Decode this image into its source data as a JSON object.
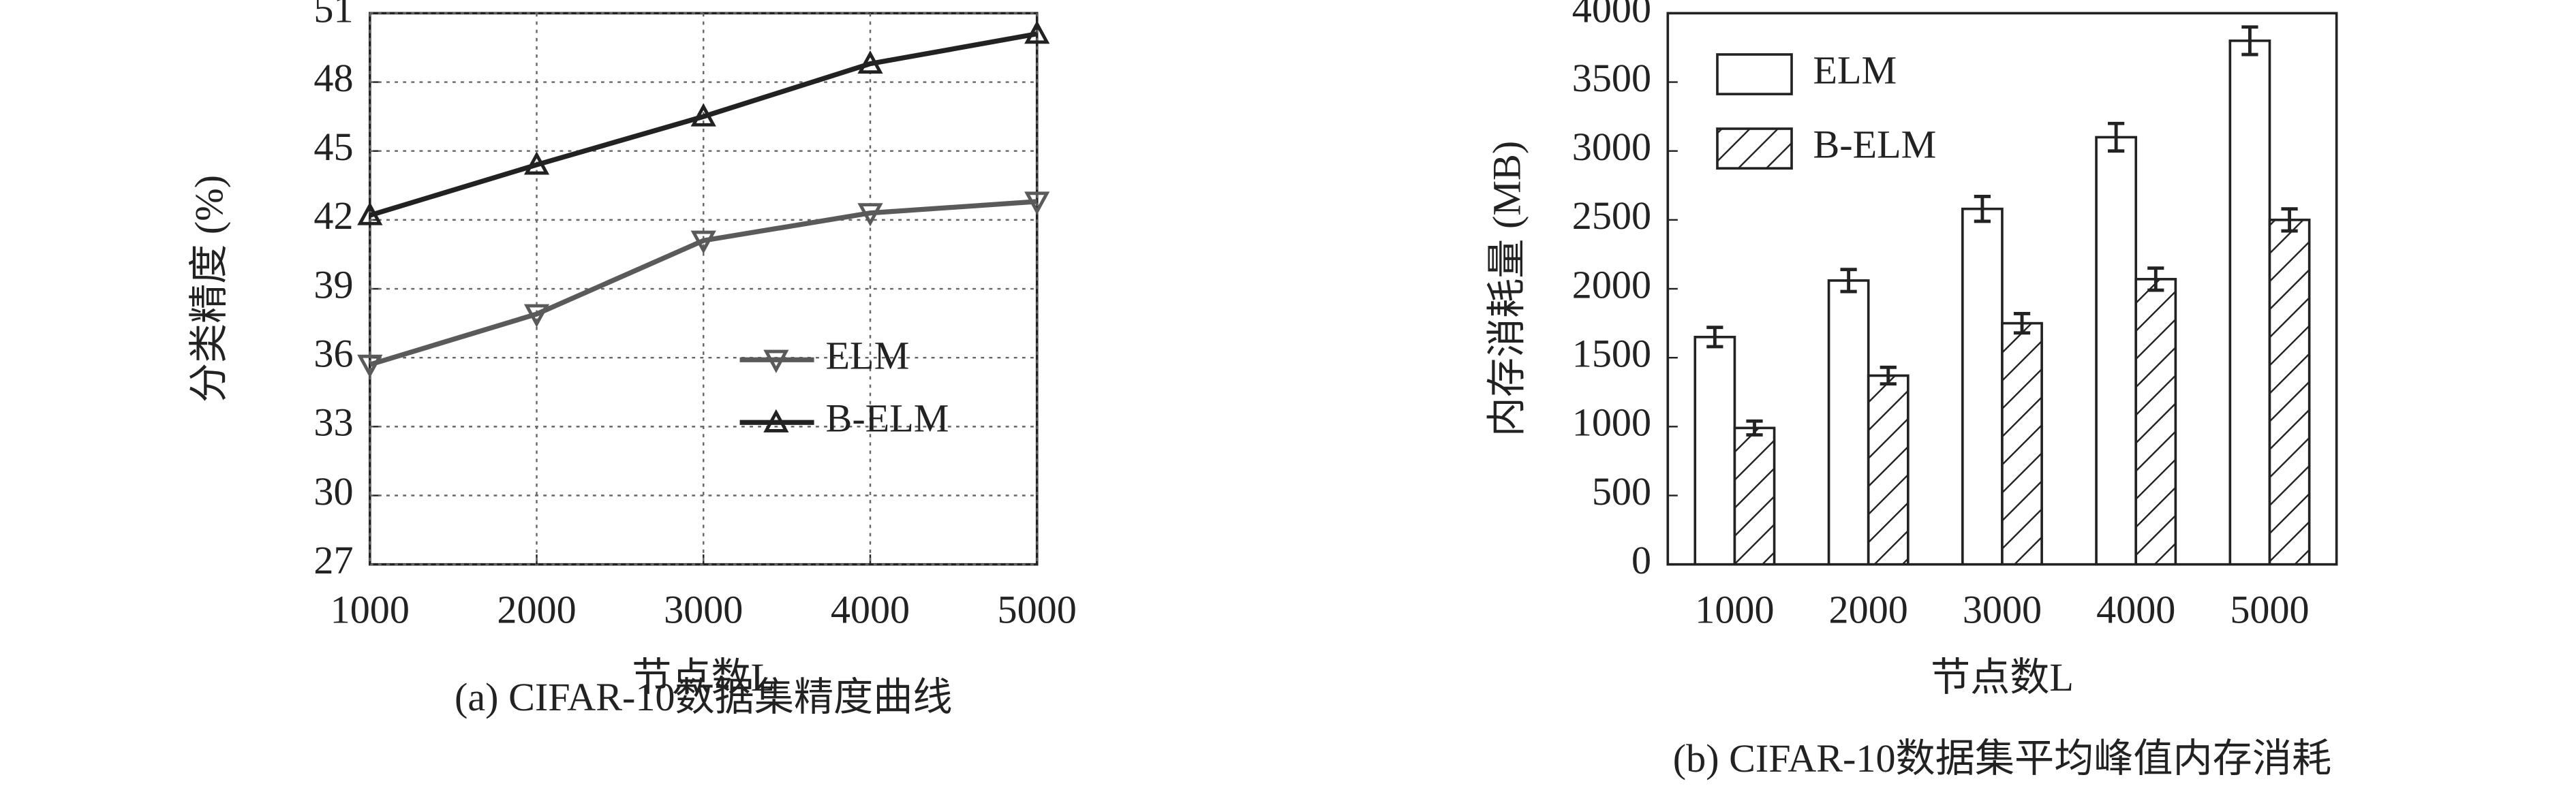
{
  "chart_data": [
    {
      "type": "line",
      "caption": "(a) CIFAR-10数据集精度曲线",
      "x_label": "节点数L",
      "y_label": "分类精度 (%)",
      "x": [
        1000,
        2000,
        3000,
        4000,
        5000
      ],
      "xlim": [
        1000,
        5000
      ],
      "xticks": [
        1000,
        2000,
        3000,
        4000,
        5000
      ],
      "ylim": [
        27,
        51
      ],
      "yticks": [
        27,
        30,
        33,
        36,
        39,
        42,
        45,
        48,
        51
      ],
      "grid": true,
      "series": [
        {
          "name": "ELM",
          "color": "#5a5a5a",
          "marker": "down",
          "values": [
            35.7,
            37.9,
            41.1,
            42.3,
            42.8
          ]
        },
        {
          "name": "B-ELM",
          "color": "#222222",
          "marker": "up",
          "values": [
            42.2,
            44.4,
            46.5,
            48.8,
            50.1
          ]
        }
      ]
    },
    {
      "type": "bar",
      "caption": "(b) CIFAR-10数据集平均峰值内存消耗",
      "x_label": "节点数L",
      "y_label": "内存消耗量 (MB)",
      "categories": [
        "1000",
        "2000",
        "3000",
        "4000",
        "5000"
      ],
      "ylim": [
        0,
        4000
      ],
      "yticks": [
        0,
        500,
        1000,
        1500,
        2000,
        2500,
        3000,
        3500,
        4000
      ],
      "grid": false,
      "series": [
        {
          "name": "ELM",
          "color": "#ffffff",
          "pattern": "none",
          "values": [
            1650,
            2060,
            2580,
            3100,
            3800
          ],
          "errors": [
            70,
            80,
            90,
            100,
            100
          ]
        },
        {
          "name": "B-ELM",
          "color": "#ffffff",
          "pattern": "hatch",
          "values": [
            990,
            1370,
            1750,
            2070,
            2500
          ],
          "errors": [
            50,
            60,
            70,
            80,
            80
          ]
        }
      ]
    }
  ]
}
